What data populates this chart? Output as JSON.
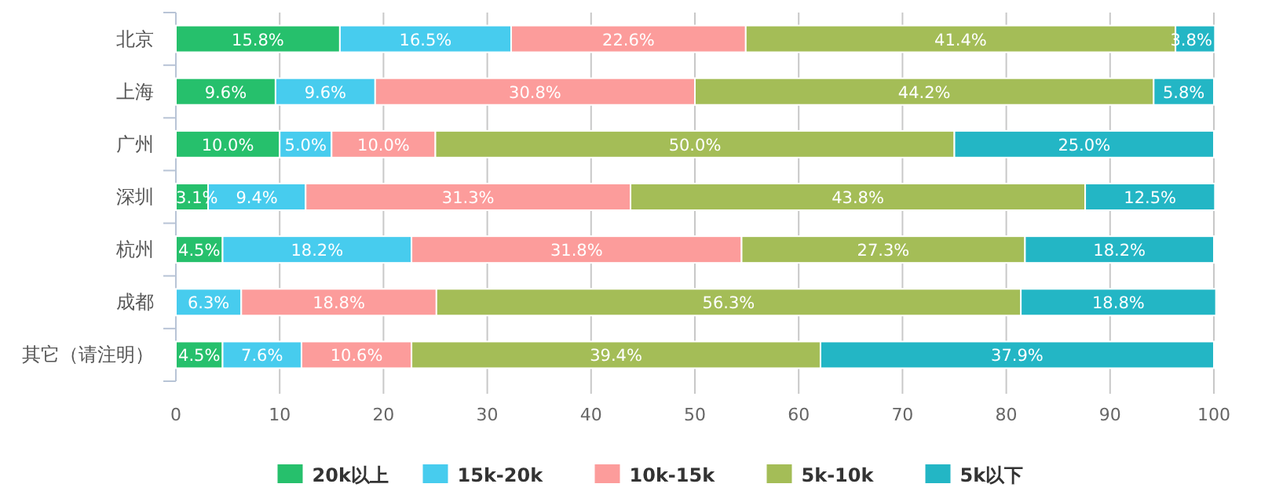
{
  "chart_data": {
    "type": "bar",
    "orientation": "horizontal",
    "stacked": true,
    "categories": [
      "北京",
      "上海",
      "广州",
      "深圳",
      "杭州",
      "成都",
      "其它（请注明）"
    ],
    "series": [
      {
        "name": "20k以上",
        "color": "#26c06c",
        "values": [
          15.8,
          9.6,
          10.0,
          3.1,
          4.5,
          0,
          4.5
        ],
        "value_labels": [
          "15.8%",
          "9.6%",
          "10.0%",
          "3.1%",
          "4.5%",
          null,
          "4.5%"
        ]
      },
      {
        "name": "15k-20k",
        "color": "#47ccee",
        "values": [
          16.5,
          9.6,
          5.0,
          9.4,
          18.2,
          6.3,
          7.6
        ],
        "value_labels": [
          "16.5%",
          "9.6%",
          "5.0%",
          "9.4%",
          "18.2%",
          "6.3%",
          "7.6%"
        ]
      },
      {
        "name": "10k-15k",
        "color": "#fc9c9b",
        "values": [
          22.6,
          30.8,
          10.0,
          31.3,
          31.8,
          18.8,
          10.6
        ],
        "value_labels": [
          "22.6%",
          "30.8%",
          "10.0%",
          "31.3%",
          "31.8%",
          "18.8%",
          "10.6%"
        ]
      },
      {
        "name": "5k-10k",
        "color": "#a4bd57",
        "values": [
          41.4,
          44.2,
          50.0,
          43.8,
          27.3,
          56.3,
          39.4
        ],
        "value_labels": [
          "41.4%",
          "44.2%",
          "50.0%",
          "43.8%",
          "27.3%",
          "56.3%",
          "39.4%"
        ]
      },
      {
        "name": "5k以下",
        "color": "#23b6c5",
        "values": [
          3.8,
          5.8,
          25.0,
          12.5,
          18.2,
          18.8,
          37.9
        ],
        "value_labels": [
          "3.8%",
          "5.8%",
          "25.0%",
          "12.5%",
          "18.2%",
          "18.8%",
          "37.9%"
        ]
      }
    ],
    "xlim": [
      0,
      100
    ],
    "xticks": [
      0,
      10,
      20,
      30,
      40,
      50,
      60,
      70,
      80,
      90,
      100
    ],
    "grid": "x",
    "legend": "bottom"
  }
}
